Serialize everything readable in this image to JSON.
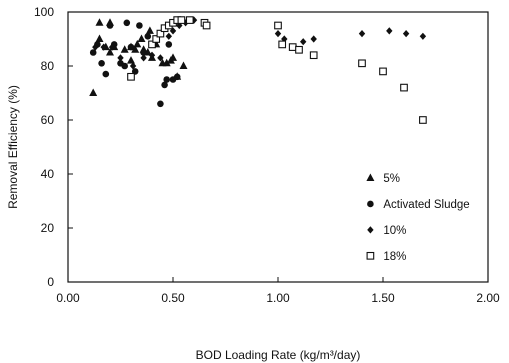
{
  "chart_data": {
    "type": "scatter",
    "title": "",
    "xlabel": "BOD Loading Rate (kg/m³/day)",
    "ylabel": "Removal Efficiency (%)",
    "xlim": [
      0,
      2.0
    ],
    "ylim": [
      0,
      100
    ],
    "x_ticks": [
      "0.00",
      "0.50",
      "1.00",
      "1.50",
      "2.00"
    ],
    "y_ticks": [
      "0",
      "20",
      "40",
      "60",
      "80",
      "100"
    ],
    "grid": false,
    "legend_position": "bottom-right",
    "series": [
      {
        "name": "5%",
        "marker": "triangle",
        "points": [
          [
            0.12,
            70
          ],
          [
            0.15,
            90
          ],
          [
            0.15,
            96
          ],
          [
            0.18,
            87
          ],
          [
            0.2,
            96
          ],
          [
            0.2,
            85
          ],
          [
            0.22,
            87
          ],
          [
            0.27,
            86
          ],
          [
            0.3,
            87
          ],
          [
            0.3,
            82
          ],
          [
            0.32,
            86
          ],
          [
            0.33,
            88
          ],
          [
            0.35,
            90
          ],
          [
            0.36,
            86
          ],
          [
            0.38,
            85
          ],
          [
            0.39,
            93
          ],
          [
            0.4,
            83
          ],
          [
            0.42,
            88
          ],
          [
            0.45,
            81
          ],
          [
            0.47,
            81
          ],
          [
            0.49,
            82
          ],
          [
            0.5,
            83
          ],
          [
            0.52,
            76
          ],
          [
            0.55,
            80
          ]
        ]
      },
      {
        "name": "Activated Sludge",
        "marker": "circle",
        "points": [
          [
            0.12,
            85
          ],
          [
            0.14,
            88
          ],
          [
            0.16,
            81
          ],
          [
            0.18,
            77
          ],
          [
            0.2,
            95
          ],
          [
            0.22,
            88
          ],
          [
            0.25,
            81
          ],
          [
            0.27,
            80
          ],
          [
            0.28,
            96
          ],
          [
            0.3,
            87
          ],
          [
            0.32,
            78
          ],
          [
            0.34,
            95
          ],
          [
            0.36,
            85
          ],
          [
            0.38,
            91
          ],
          [
            0.4,
            88
          ],
          [
            0.42,
            90
          ],
          [
            0.44,
            66
          ],
          [
            0.46,
            73
          ],
          [
            0.47,
            75
          ],
          [
            0.48,
            88
          ],
          [
            0.5,
            75
          ],
          [
            0.52,
            76
          ]
        ]
      },
      {
        "name": "10%",
        "marker": "diamond",
        "points": [
          [
            0.13,
            87
          ],
          [
            0.17,
            87
          ],
          [
            0.21,
            87
          ],
          [
            0.25,
            83
          ],
          [
            0.31,
            80
          ],
          [
            0.36,
            83
          ],
          [
            0.4,
            84
          ],
          [
            0.44,
            83
          ],
          [
            0.48,
            91
          ],
          [
            0.5,
            93
          ],
          [
            0.53,
            95
          ],
          [
            0.56,
            96
          ],
          [
            0.6,
            97
          ],
          [
            0.65,
            96
          ],
          [
            1.0,
            92
          ],
          [
            1.03,
            90
          ],
          [
            1.08,
            87
          ],
          [
            1.12,
            89
          ],
          [
            1.17,
            90
          ],
          [
            1.4,
            92
          ],
          [
            1.53,
            93
          ],
          [
            1.61,
            92
          ],
          [
            1.69,
            91
          ]
        ]
      },
      {
        "name": "18%",
        "marker": "square",
        "points": [
          [
            0.3,
            76
          ],
          [
            0.4,
            88
          ],
          [
            0.42,
            90
          ],
          [
            0.44,
            92
          ],
          [
            0.46,
            94
          ],
          [
            0.48,
            95
          ],
          [
            0.5,
            96
          ],
          [
            0.52,
            97
          ],
          [
            0.54,
            97
          ],
          [
            0.58,
            97
          ],
          [
            0.65,
            96
          ],
          [
            0.66,
            95
          ],
          [
            1.0,
            95
          ],
          [
            1.02,
            88
          ],
          [
            1.07,
            87
          ],
          [
            1.1,
            86
          ],
          [
            1.17,
            84
          ],
          [
            1.4,
            81
          ],
          [
            1.5,
            78
          ],
          [
            1.6,
            72
          ],
          [
            1.69,
            60
          ]
        ]
      }
    ]
  }
}
